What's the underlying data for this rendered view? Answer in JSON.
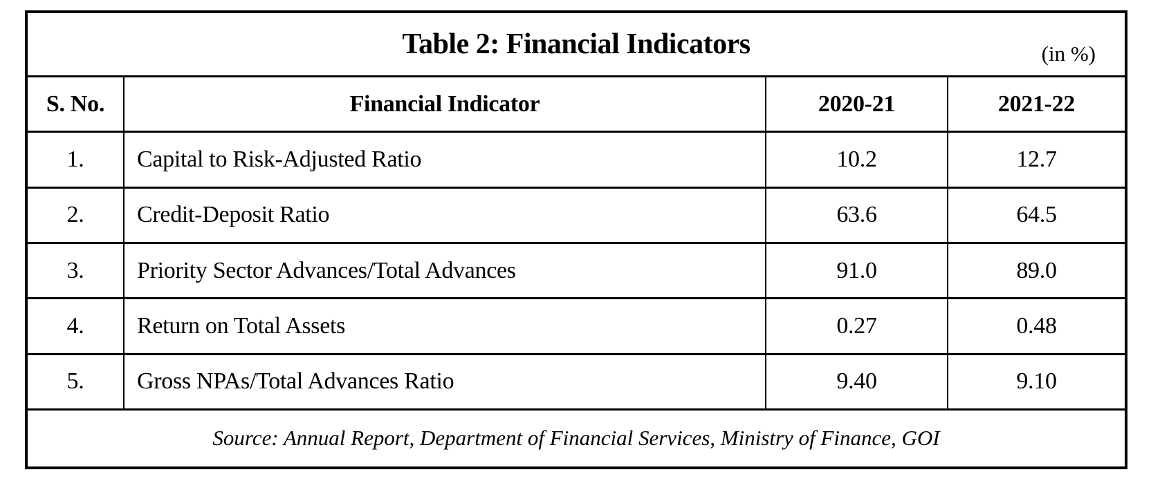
{
  "table": {
    "title": "Table 2: Financial Indicators",
    "unit_note": "(in %)",
    "columns": {
      "sno": "S. No.",
      "indicator": "Financial Indicator",
      "y1": "2020-21",
      "y2": "2021-22"
    },
    "rows": [
      {
        "sno": "1.",
        "indicator": "Capital to Risk-Adjusted Ratio",
        "y1": "10.2",
        "y2": "12.7"
      },
      {
        "sno": "2.",
        "indicator": "Credit-Deposit Ratio",
        "y1": "63.6",
        "y2": "64.5"
      },
      {
        "sno": "3.",
        "indicator": "Priority Sector Advances/Total Advances",
        "y1": "91.0",
        "y2": "89.0"
      },
      {
        "sno": "4.",
        "indicator": "Return on Total Assets",
        "y1": "0.27",
        "y2": "0.48"
      },
      {
        "sno": "5.",
        "indicator": "Gross NPAs/Total Advances Ratio",
        "y1": "9.40",
        "y2": "9.10"
      }
    ],
    "source": "Source: Annual Report, Department of Financial Services, Ministry of Finance, GOI"
  },
  "colors": {
    "border": "#000000",
    "text": "#000000",
    "background": "#ffffff"
  }
}
